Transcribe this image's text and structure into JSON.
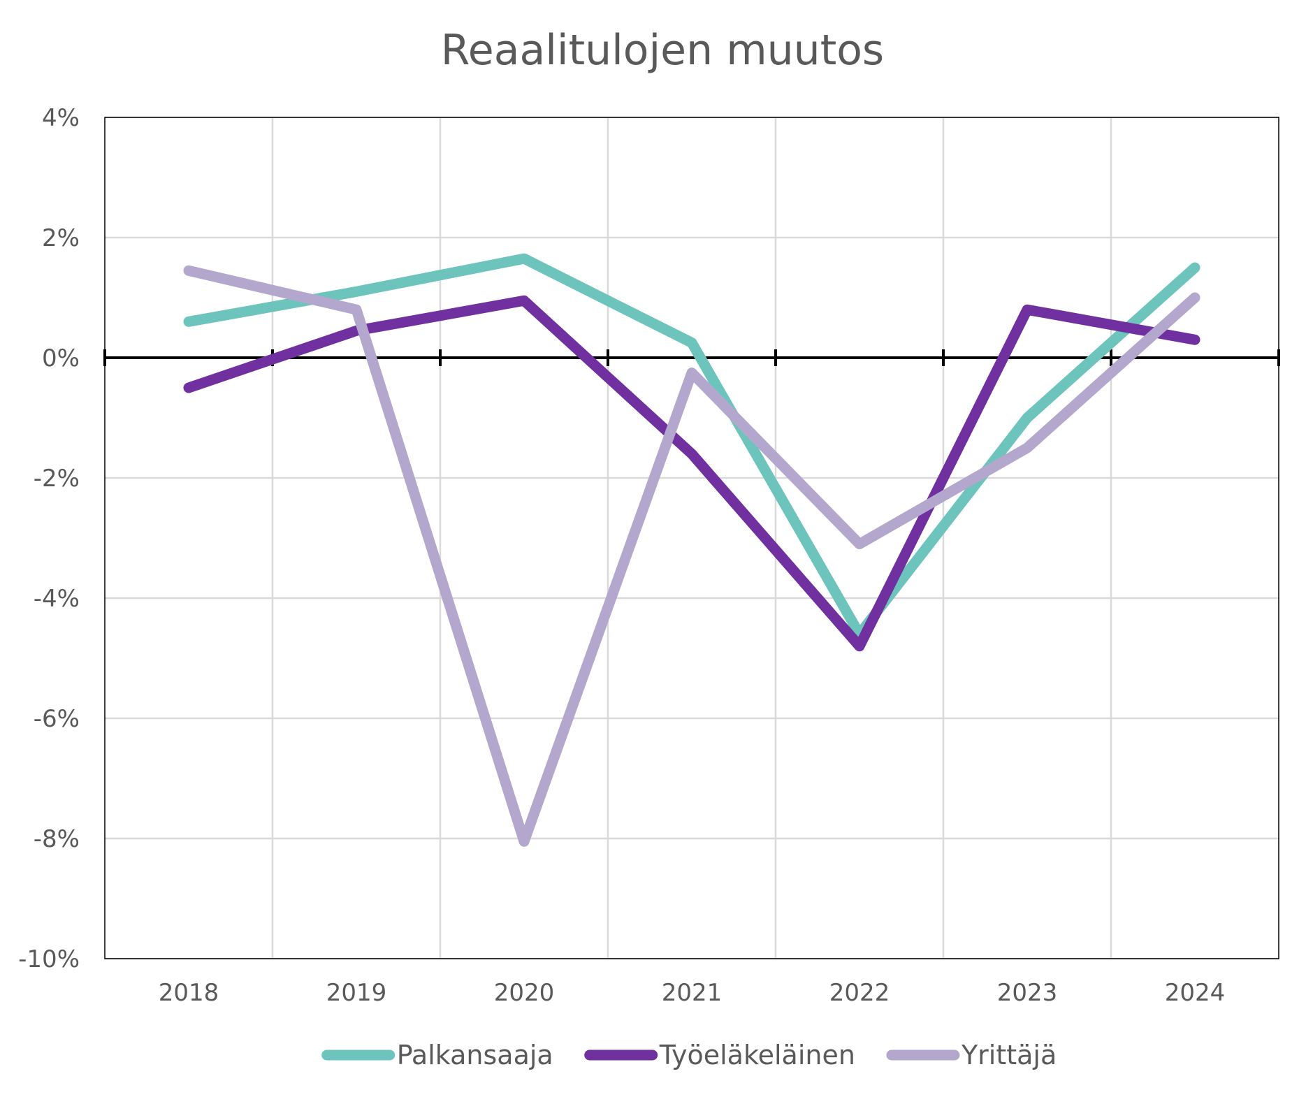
{
  "chart_data": {
    "type": "line",
    "title": "Reaalitulojen muutos",
    "xlabel": "",
    "ylabel": "",
    "categories": [
      "2018",
      "2019",
      "2020",
      "2021",
      "2022",
      "2023",
      "2024"
    ],
    "ylim": [
      -10,
      4
    ],
    "yticks": [
      4,
      2,
      0,
      -2,
      -4,
      -6,
      -8,
      -10
    ],
    "ytick_labels": [
      "4%",
      "2%",
      "0%",
      "-2%",
      "-4%",
      "-6%",
      "-8%",
      "-10%"
    ],
    "grid": true,
    "legend_position": "bottom",
    "series": [
      {
        "name": "Palkansaaja",
        "color": "#6CC4BC",
        "values": [
          0.6,
          1.1,
          1.65,
          0.25,
          -4.6,
          -1.0,
          1.5
        ]
      },
      {
        "name": "Työeläkeläinen",
        "color": "#7030A0",
        "values": [
          -0.5,
          0.45,
          0.95,
          -1.6,
          -4.8,
          0.8,
          0.3
        ]
      },
      {
        "name": "Yrittäjä",
        "color": "#B4A7CD",
        "values": [
          1.45,
          0.8,
          -8.05,
          -0.25,
          -3.1,
          -1.5,
          1.0
        ]
      }
    ]
  }
}
